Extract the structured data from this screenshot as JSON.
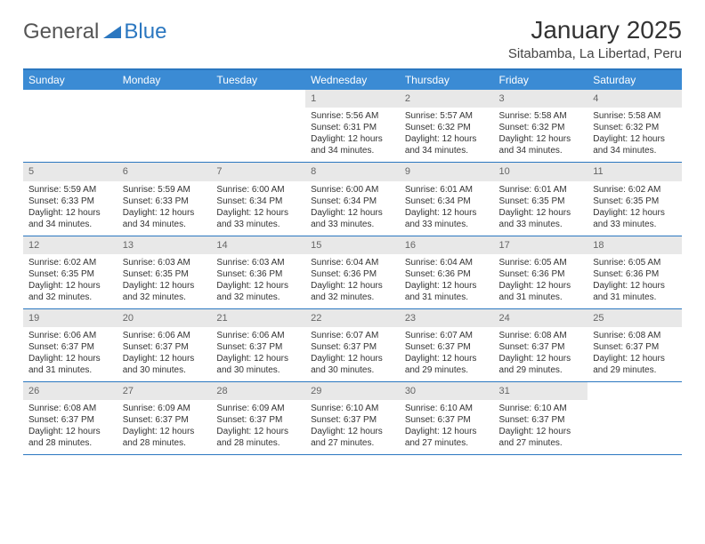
{
  "brand": {
    "general": "General",
    "blue": "Blue"
  },
  "title": "January 2025",
  "location": "Sitabamba, La Libertad, Peru",
  "colors": {
    "accent": "#3b8bd4",
    "rule": "#2b77c0",
    "daystrip": "#e8e8e8"
  },
  "weekdays": [
    "Sunday",
    "Monday",
    "Tuesday",
    "Wednesday",
    "Thursday",
    "Friday",
    "Saturday"
  ],
  "weeks": [
    [
      {
        "n": "",
        "sr": "",
        "ss": "",
        "dl": ""
      },
      {
        "n": "",
        "sr": "",
        "ss": "",
        "dl": ""
      },
      {
        "n": "",
        "sr": "",
        "ss": "",
        "dl": ""
      },
      {
        "n": "1",
        "sr": "5:56 AM",
        "ss": "6:31 PM",
        "dl": "12 hours and 34 minutes."
      },
      {
        "n": "2",
        "sr": "5:57 AM",
        "ss": "6:32 PM",
        "dl": "12 hours and 34 minutes."
      },
      {
        "n": "3",
        "sr": "5:58 AM",
        "ss": "6:32 PM",
        "dl": "12 hours and 34 minutes."
      },
      {
        "n": "4",
        "sr": "5:58 AM",
        "ss": "6:32 PM",
        "dl": "12 hours and 34 minutes."
      }
    ],
    [
      {
        "n": "5",
        "sr": "5:59 AM",
        "ss": "6:33 PM",
        "dl": "12 hours and 34 minutes."
      },
      {
        "n": "6",
        "sr": "5:59 AM",
        "ss": "6:33 PM",
        "dl": "12 hours and 34 minutes."
      },
      {
        "n": "7",
        "sr": "6:00 AM",
        "ss": "6:34 PM",
        "dl": "12 hours and 33 minutes."
      },
      {
        "n": "8",
        "sr": "6:00 AM",
        "ss": "6:34 PM",
        "dl": "12 hours and 33 minutes."
      },
      {
        "n": "9",
        "sr": "6:01 AM",
        "ss": "6:34 PM",
        "dl": "12 hours and 33 minutes."
      },
      {
        "n": "10",
        "sr": "6:01 AM",
        "ss": "6:35 PM",
        "dl": "12 hours and 33 minutes."
      },
      {
        "n": "11",
        "sr": "6:02 AM",
        "ss": "6:35 PM",
        "dl": "12 hours and 33 minutes."
      }
    ],
    [
      {
        "n": "12",
        "sr": "6:02 AM",
        "ss": "6:35 PM",
        "dl": "12 hours and 32 minutes."
      },
      {
        "n": "13",
        "sr": "6:03 AM",
        "ss": "6:35 PM",
        "dl": "12 hours and 32 minutes."
      },
      {
        "n": "14",
        "sr": "6:03 AM",
        "ss": "6:36 PM",
        "dl": "12 hours and 32 minutes."
      },
      {
        "n": "15",
        "sr": "6:04 AM",
        "ss": "6:36 PM",
        "dl": "12 hours and 32 minutes."
      },
      {
        "n": "16",
        "sr": "6:04 AM",
        "ss": "6:36 PM",
        "dl": "12 hours and 31 minutes."
      },
      {
        "n": "17",
        "sr": "6:05 AM",
        "ss": "6:36 PM",
        "dl": "12 hours and 31 minutes."
      },
      {
        "n": "18",
        "sr": "6:05 AM",
        "ss": "6:36 PM",
        "dl": "12 hours and 31 minutes."
      }
    ],
    [
      {
        "n": "19",
        "sr": "6:06 AM",
        "ss": "6:37 PM",
        "dl": "12 hours and 31 minutes."
      },
      {
        "n": "20",
        "sr": "6:06 AM",
        "ss": "6:37 PM",
        "dl": "12 hours and 30 minutes."
      },
      {
        "n": "21",
        "sr": "6:06 AM",
        "ss": "6:37 PM",
        "dl": "12 hours and 30 minutes."
      },
      {
        "n": "22",
        "sr": "6:07 AM",
        "ss": "6:37 PM",
        "dl": "12 hours and 30 minutes."
      },
      {
        "n": "23",
        "sr": "6:07 AM",
        "ss": "6:37 PM",
        "dl": "12 hours and 29 minutes."
      },
      {
        "n": "24",
        "sr": "6:08 AM",
        "ss": "6:37 PM",
        "dl": "12 hours and 29 minutes."
      },
      {
        "n": "25",
        "sr": "6:08 AM",
        "ss": "6:37 PM",
        "dl": "12 hours and 29 minutes."
      }
    ],
    [
      {
        "n": "26",
        "sr": "6:08 AM",
        "ss": "6:37 PM",
        "dl": "12 hours and 28 minutes."
      },
      {
        "n": "27",
        "sr": "6:09 AM",
        "ss": "6:37 PM",
        "dl": "12 hours and 28 minutes."
      },
      {
        "n": "28",
        "sr": "6:09 AM",
        "ss": "6:37 PM",
        "dl": "12 hours and 28 minutes."
      },
      {
        "n": "29",
        "sr": "6:10 AM",
        "ss": "6:37 PM",
        "dl": "12 hours and 27 minutes."
      },
      {
        "n": "30",
        "sr": "6:10 AM",
        "ss": "6:37 PM",
        "dl": "12 hours and 27 minutes."
      },
      {
        "n": "31",
        "sr": "6:10 AM",
        "ss": "6:37 PM",
        "dl": "12 hours and 27 minutes."
      },
      {
        "n": "",
        "sr": "",
        "ss": "",
        "dl": ""
      }
    ]
  ],
  "labels": {
    "sunrise": "Sunrise:",
    "sunset": "Sunset:",
    "daylight": "Daylight:"
  }
}
